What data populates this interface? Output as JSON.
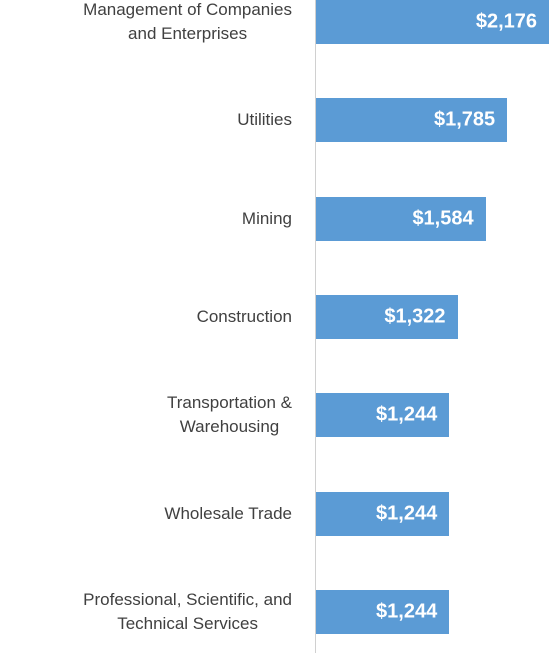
{
  "chart_data": {
    "type": "bar",
    "orientation": "horizontal",
    "color": "#5b9bd5",
    "categories": [
      "Management of Companies\nand Enterprises",
      "Utilities",
      "Mining",
      "Construction",
      "Transportation &\nWarehousing",
      "Wholesale Trade",
      "Professional, Scientific, and\nTechnical Services"
    ],
    "values": [
      2176,
      1785,
      1584,
      1322,
      1244,
      1244,
      1244
    ],
    "value_labels": [
      "$2,176",
      "$1,785",
      "$1,584",
      "$1,322",
      "$1,244",
      "$1,244",
      "$1,244"
    ]
  }
}
